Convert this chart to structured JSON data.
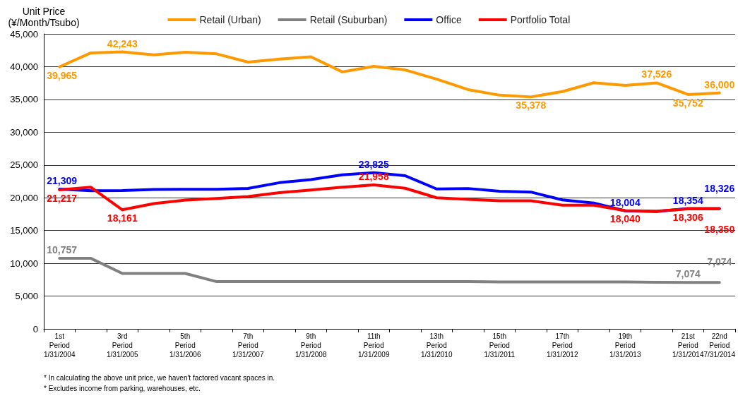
{
  "chart_data": {
    "type": "line",
    "ylabel": "Unit Price\n(¥/Month/Tsubo)",
    "categories": [
      "1st\nPeriod\n1/31/2004",
      null,
      "3rd\nPeriod\n1/31/2005",
      null,
      "5th\nPeriod\n1/31/2006",
      null,
      "7th\nPeriod\n1/31/2007",
      null,
      "9th\nPeriod\n1/31/2008",
      null,
      "11th\nPeriod\n1/31/2009",
      null,
      "13th\nPeriod\n1/31/2010",
      null,
      "15th\nPeriod\n1/31/2011",
      null,
      "17th\nPeriod\n1/31/2012",
      null,
      "19th\nPeriod\n1/31/2013",
      null,
      "21st\nPeriod\n1/31/2014",
      "22nd\nPeriod\n7/31/2014"
    ],
    "series": [
      {
        "name": "Retail (Urban)",
        "color": "#ff9900",
        "values": [
          39965,
          42100,
          42243,
          41800,
          42200,
          41950,
          40700,
          41150,
          41500,
          39200,
          40050,
          39500,
          38100,
          36500,
          35650,
          35378,
          36200,
          37550,
          37150,
          37526,
          35752,
          36000
        ],
        "value_labels": [
          "39,965",
          null,
          "42,243",
          null,
          null,
          null,
          null,
          null,
          null,
          null,
          null,
          null,
          null,
          null,
          null,
          "35,378",
          null,
          null,
          null,
          "37,526",
          "35,752",
          "36,000"
        ]
      },
      {
        "name": "Retail (Suburban)",
        "color": "#808080",
        "values": [
          10757,
          10757,
          8450,
          8450,
          8450,
          7200,
          7200,
          7200,
          7200,
          7200,
          7200,
          7200,
          7200,
          7200,
          7150,
          7150,
          7150,
          7150,
          7150,
          7100,
          7074,
          7074
        ],
        "value_labels": [
          "10,757",
          null,
          null,
          null,
          null,
          null,
          null,
          null,
          null,
          null,
          null,
          null,
          null,
          null,
          null,
          null,
          null,
          null,
          null,
          null,
          "7,074",
          "7,074"
        ]
      },
      {
        "name": "Office",
        "color": "#0000ff",
        "values": [
          21309,
          21070,
          21100,
          21250,
          21300,
          21300,
          21420,
          22300,
          22780,
          23500,
          23825,
          23360,
          21340,
          21410,
          21000,
          20870,
          19670,
          19200,
          18004,
          17900,
          18354,
          18326
        ],
        "value_labels": [
          "21,309",
          null,
          null,
          null,
          null,
          null,
          null,
          null,
          null,
          null,
          "23,825",
          null,
          null,
          null,
          null,
          null,
          null,
          null,
          "18,004",
          null,
          "18,354",
          "18,326"
        ]
      },
      {
        "name": "Portfolio Total",
        "color": "#ff0000",
        "values": [
          21217,
          21600,
          18161,
          19100,
          19640,
          19900,
          20180,
          20780,
          21180,
          21600,
          21958,
          21450,
          20000,
          19750,
          19530,
          19530,
          18860,
          18860,
          18040,
          17950,
          18306,
          18350
        ],
        "value_labels": [
          "21,217",
          null,
          "18,161",
          null,
          null,
          null,
          null,
          null,
          null,
          null,
          "21,958",
          null,
          null,
          null,
          null,
          null,
          null,
          null,
          "18,040",
          null,
          "18,306",
          "18,350"
        ]
      }
    ],
    "ylim": [
      0,
      45000
    ],
    "yticks": [
      {
        "value": 0,
        "label": "0"
      },
      {
        "value": 5000,
        "label": "5,000"
      },
      {
        "value": 10000,
        "label": "10,000"
      },
      {
        "value": 15000,
        "label": "15,000"
      },
      {
        "value": 20000,
        "label": "20,000"
      },
      {
        "value": 25000,
        "label": "25,000"
      },
      {
        "value": 30000,
        "label": "30,000"
      },
      {
        "value": 35000,
        "label": "35,000"
      },
      {
        "value": 40000,
        "label": "40,000"
      },
      {
        "value": 45000,
        "label": "45,000"
      }
    ],
    "grid": "y",
    "legend": "top",
    "marker": "none",
    "line_style": "solid",
    "annotations": [
      "* In calculating the above unit price, we haven't factored vacant spaces in.",
      "* Excludes income from parking, warehouses, etc."
    ]
  }
}
